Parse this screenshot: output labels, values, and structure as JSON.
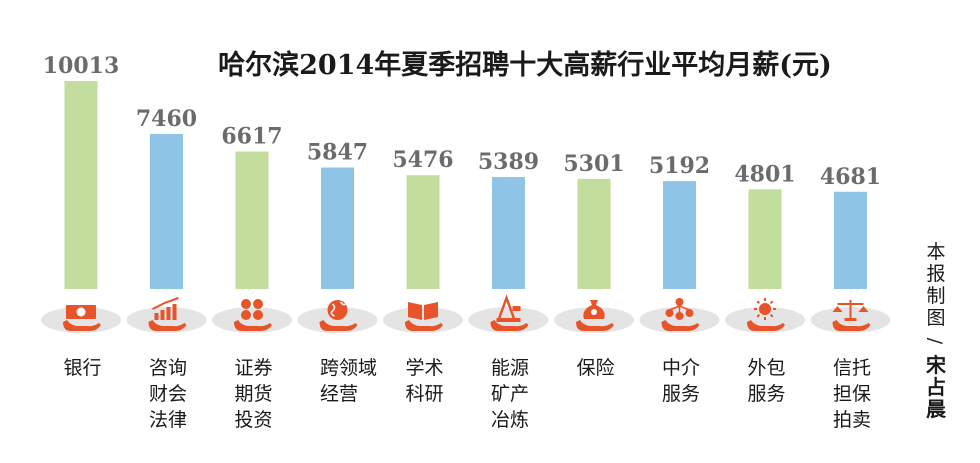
{
  "chart_data": {
    "type": "bar",
    "title": "哈尔滨2014年夏季招聘十大高薪行业平均月薪(元)",
    "xlabel": "",
    "ylabel": "",
    "ylim": [
      0,
      10013
    ],
    "grid": false,
    "legend": "none",
    "categories": [
      [
        "银行"
      ],
      [
        "咨询",
        "财会",
        "法律"
      ],
      [
        "证券",
        "期货",
        "投资"
      ],
      [
        "跨领域",
        "经营"
      ],
      [
        "学术",
        "科研"
      ],
      [
        "能源",
        "矿产",
        "冶炼"
      ],
      [
        "保险"
      ],
      [
        "中介",
        "服务"
      ],
      [
        "外包",
        "服务"
      ],
      [
        "信托",
        "担保",
        "拍卖"
      ]
    ],
    "values": [
      10013,
      7460,
      6617,
      5847,
      5476,
      5389,
      5301,
      5192,
      4801,
      4681
    ],
    "value_labels": [
      "10013",
      "7460",
      "6617",
      "5847",
      "5476",
      "5389",
      "5301",
      "5192",
      "4801",
      "4681"
    ],
    "bar_colors": [
      "#c3dd9c",
      "#8ec5e6",
      "#c3dd9c",
      "#8ec5e6",
      "#c3dd9c",
      "#8ec5e6",
      "#c3dd9c",
      "#8ec5e6",
      "#c3dd9c",
      "#8ec5e6"
    ],
    "icons": [
      "money-icon",
      "chart-growth-icon",
      "coins-icon",
      "globe-icon",
      "book-icon",
      "oil-rig-icon",
      "money-bag-icon",
      "people-network-icon",
      "sun-icon",
      "scales-icon"
    ]
  },
  "credit": {
    "prefix_chars": [
      "本",
      "报",
      "制",
      "图"
    ],
    "separator": "/",
    "author_chars": [
      "宋",
      "占",
      "晨"
    ]
  },
  "colors": {
    "icon": "#e8542a",
    "disc": "#e4e4e4",
    "value_text": "#6b6b6b"
  }
}
